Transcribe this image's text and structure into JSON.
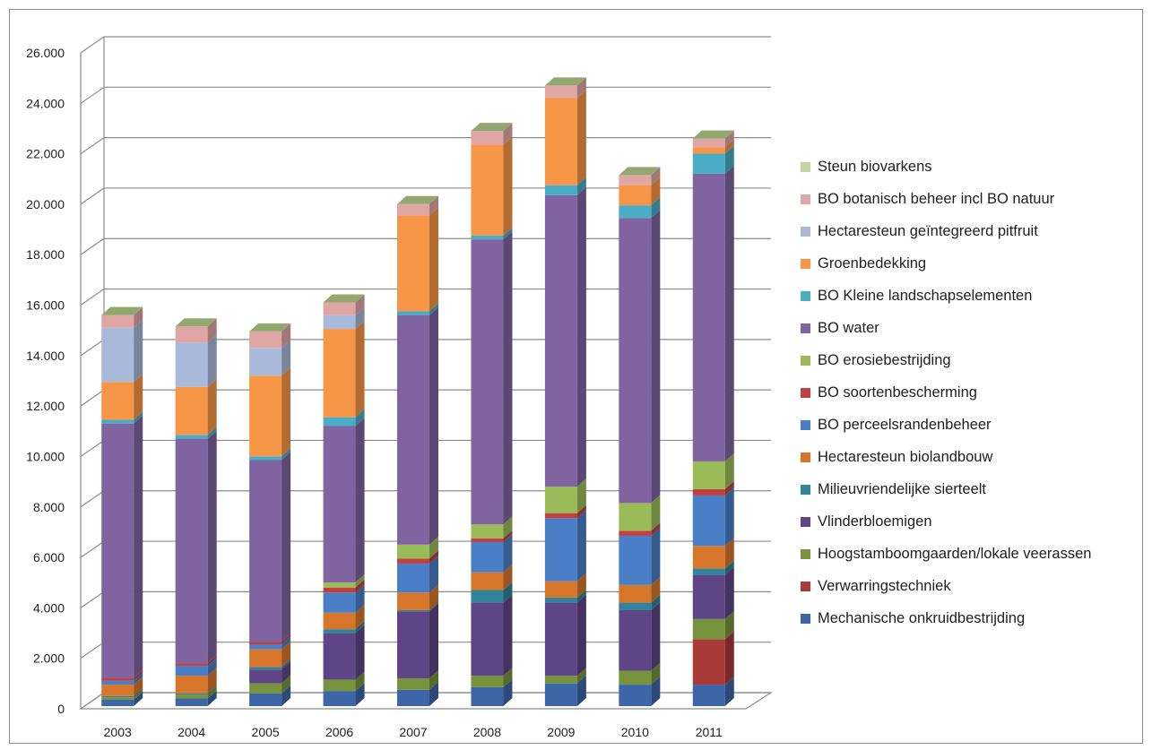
{
  "chart_data": {
    "type": "bar",
    "stacked": true,
    "style": "3d-stacked-column",
    "grid": true,
    "legend_position": "right",
    "title": "",
    "xlabel": "",
    "ylabel": "",
    "ylim": [
      0,
      26000
    ],
    "y_ticks": [
      0,
      2000,
      4000,
      6000,
      8000,
      10000,
      12000,
      14000,
      16000,
      18000,
      20000,
      22000,
      24000,
      26000
    ],
    "y_tick_labels": [
      "0",
      "2.000",
      "4.000",
      "6.000",
      "8.000",
      "10.000",
      "12.000",
      "14.000",
      "16.000",
      "18.000",
      "20.000",
      "22.000",
      "24.000",
      "26.000"
    ],
    "categories": [
      "2003",
      "2004",
      "2005",
      "2006",
      "2007",
      "2008",
      "2009",
      "2010",
      "2011"
    ],
    "series": [
      {
        "name": "Mechanische onkruidbestrijding",
        "color": "#3d66a8",
        "values": [
          250,
          300,
          500,
          600,
          650,
          750,
          900,
          850,
          850
        ]
      },
      {
        "name": "Verwarringstechniek",
        "color": "#a83a37",
        "values": [
          0,
          0,
          0,
          0,
          0,
          0,
          0,
          0,
          1800
        ]
      },
      {
        "name": "Hoogstamboomgaarden/lokale veerassen",
        "color": "#77933c",
        "values": [
          100,
          150,
          400,
          450,
          450,
          450,
          300,
          550,
          800
        ]
      },
      {
        "name": "Vlinderbloemigen",
        "color": "#5e4586",
        "values": [
          0,
          0,
          550,
          1850,
          2650,
          2900,
          2900,
          2400,
          1750
        ]
      },
      {
        "name": "Milieuvriendelijke sierteelt",
        "color": "#31849b",
        "values": [
          50,
          50,
          100,
          150,
          50,
          500,
          200,
          300,
          250
        ]
      },
      {
        "name": "Hectaresteun biolandbouw",
        "color": "#d7762a",
        "values": [
          450,
          700,
          700,
          650,
          700,
          700,
          650,
          700,
          900
        ]
      },
      {
        "name": "BO perceelsrandenbeheer",
        "color": "#4a7fc7",
        "values": [
          150,
          400,
          200,
          800,
          1150,
          1200,
          2500,
          1950,
          2000
        ]
      },
      {
        "name": "BO soortenbescherming",
        "color": "#c0413e",
        "values": [
          100,
          100,
          100,
          200,
          200,
          150,
          200,
          200,
          250
        ]
      },
      {
        "name": "BO erosiebestrijding",
        "color": "#9bbb59",
        "values": [
          0,
          0,
          0,
          200,
          550,
          550,
          1050,
          1100,
          1100
        ]
      },
      {
        "name": "BO water",
        "color": "#8064a2",
        "values": [
          10100,
          8900,
          7200,
          6200,
          9100,
          11300,
          11550,
          11300,
          11400
        ]
      },
      {
        "name": "BO Kleine landschapselementen",
        "color": "#4bacc6",
        "values": [
          150,
          150,
          150,
          350,
          150,
          150,
          400,
          500,
          800
        ]
      },
      {
        "name": "Groenbedekking",
        "color": "#f79646",
        "values": [
          1500,
          1900,
          3200,
          3500,
          3800,
          3600,
          3450,
          800,
          250
        ]
      },
      {
        "name": "Hectaresteun geïntegreerd pitfruit",
        "color": "#a9b9da",
        "values": [
          2150,
          1750,
          1100,
          550,
          0,
          0,
          0,
          0,
          0
        ]
      },
      {
        "name": "BO botanisch beheer incl BO natuur",
        "color": "#dfa6a4",
        "values": [
          500,
          650,
          650,
          500,
          450,
          550,
          500,
          400,
          350
        ]
      },
      {
        "name": "Steun biovarkens",
        "color": "#c3d69b",
        "values": [
          0,
          0,
          0,
          0,
          0,
          0,
          0,
          0,
          0
        ]
      }
    ]
  }
}
